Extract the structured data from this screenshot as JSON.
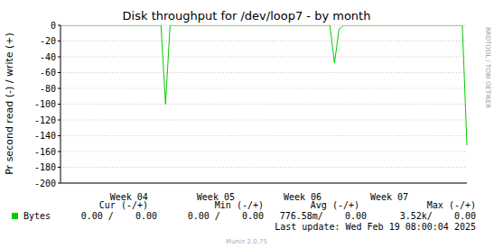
{
  "chart_data": {
    "type": "line",
    "title": "Disk throughput for /dev/loop7 - by month",
    "y_label": "Pr second read (-) / write (+)",
    "categories": [
      null,
      null,
      null,
      null,
      null,
      null,
      null,
      null,
      null,
      null,
      null,
      null,
      null,
      null,
      null,
      "Week 04",
      null,
      null,
      null,
      null,
      null,
      null,
      null,
      null,
      null,
      null,
      null,
      null,
      null,
      null,
      null,
      null,
      null,
      null,
      "Week 05",
      null,
      null,
      null,
      null,
      null,
      null,
      null,
      null,
      null,
      null,
      null,
      null,
      null,
      null,
      null,
      null,
      null,
      null,
      "Week 06",
      null,
      null,
      null,
      null,
      null,
      null,
      null,
      null,
      null,
      null,
      null,
      null,
      null,
      null,
      null,
      null,
      null,
      null,
      "Week 07",
      null,
      null,
      null,
      null,
      null,
      null,
      null,
      null,
      null,
      null,
      null,
      null,
      null,
      null,
      null,
      null,
      null
    ],
    "series": [
      {
        "name": "Bytes",
        "color": "#00cc00",
        "values": [
          0,
          0,
          0,
          0,
          0,
          0,
          0,
          0,
          0,
          0,
          0,
          0,
          0,
          0,
          0,
          0,
          0,
          0,
          0,
          0,
          0,
          0,
          0,
          -100,
          0,
          0,
          0,
          0,
          0,
          0,
          0,
          0,
          0,
          0,
          0,
          0,
          0,
          0,
          0,
          0,
          0,
          0,
          0,
          0,
          0,
          0,
          0,
          0,
          0,
          0,
          0,
          0,
          0,
          0,
          0,
          0,
          0,
          0,
          0,
          0,
          -48,
          -5,
          0,
          0,
          0,
          0,
          0,
          0,
          0,
          0,
          0,
          0,
          0,
          0,
          0,
          0,
          0,
          0,
          0,
          0,
          0,
          0,
          0,
          0,
          0,
          0,
          0,
          0,
          0,
          -152
        ]
      }
    ],
    "ylim": [
      -200,
      0
    ],
    "yticks": [
      -200,
      -180,
      -160,
      -140,
      -120,
      -100,
      -80,
      -60,
      -40,
      -20,
      0
    ],
    "grid": true,
    "summary": {
      "headers": [
        "Cur (-/+)",
        "Min (-/+)",
        "Avg (-/+)",
        "Max (-/+)"
      ],
      "values": [
        "0.00 /    0.00",
        "0.00 /    0.00",
        "776.58m/    0.00",
        "3.52k/    0.00"
      ]
    },
    "last_update": "Last update: Wed Feb 19 08:00:04 2025",
    "footer": "Munin 2.0.75",
    "watermark": "RRDTOOL / TOBI OETIKER"
  }
}
